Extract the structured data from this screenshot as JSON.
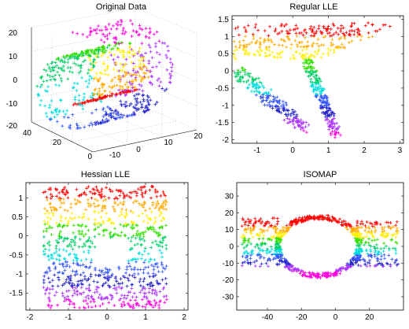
{
  "chart_data": [
    {
      "type": "scatter",
      "projection": "3d",
      "title": "Original Data",
      "marker": "+",
      "color_map": "hsv rainbow (red → yellow → green → cyan → blue → magenta)",
      "colors": [
        "#ff0000",
        "#ffaa00",
        "#ffee00",
        "#33dd00",
        "#00cc66",
        "#00dddd",
        "#3355ff",
        "#2222cc",
        "#aa33ff",
        "#ff00dd"
      ],
      "xticks": [
        "0",
        "20",
        "40"
      ],
      "yticks": [
        "-10",
        "0",
        "10",
        "20"
      ],
      "zticks": [
        "-20",
        "-10",
        "0",
        "10",
        "20"
      ],
      "xlim": [
        0,
        40
      ],
      "ylim": [
        -15,
        20
      ],
      "zlim": [
        -20,
        20
      ],
      "grid": true,
      "description_of_shape": "swiss roll with a hole"
    },
    {
      "type": "scatter",
      "title": "Regular LLE",
      "marker": "+",
      "xticks": [
        "-1",
        "0",
        "1",
        "2",
        "3"
      ],
      "yticks": [
        "-2",
        "-1.5",
        "-1",
        "-0.5",
        "0",
        "0.5",
        "1",
        "1.5"
      ],
      "xlim": [
        -1.7,
        3.1
      ],
      "ylim": [
        -2.1,
        1.6
      ]
    },
    {
      "type": "scatter",
      "title": "Hessian LLE",
      "marker": "+",
      "xticks": [
        "-2",
        "-1",
        "0",
        "1",
        "2"
      ],
      "yticks": [
        "-1.5",
        "-1",
        "-0.5",
        "0",
        "0.5",
        "1"
      ],
      "xlim": [
        -2.1,
        2.1
      ],
      "ylim": [
        -1.95,
        1.4
      ]
    },
    {
      "type": "scatter",
      "title": "ISOMAP",
      "marker": "+",
      "xticks": [
        "-40",
        "-20",
        "0",
        "20"
      ],
      "yticks": [
        "-30",
        "-20",
        "-10",
        "0",
        "10",
        "20",
        "30"
      ],
      "xlim": [
        -58,
        40
      ],
      "ylim": [
        -38,
        38
      ]
    }
  ]
}
